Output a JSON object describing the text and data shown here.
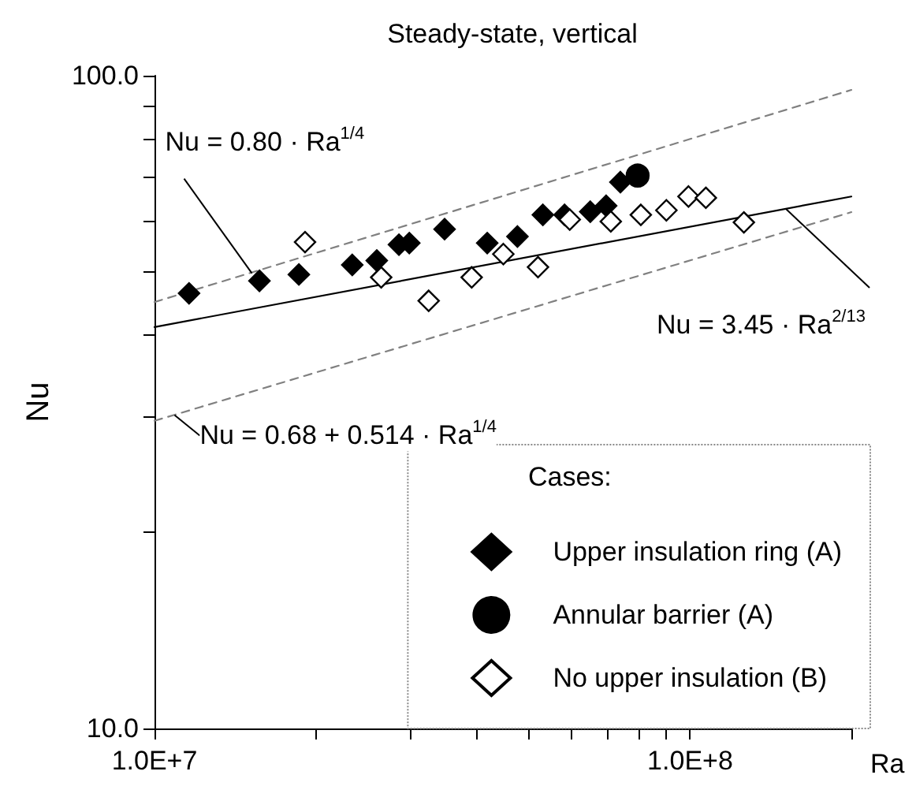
{
  "chart_data": {
    "type": "scatter",
    "title": "Steady-state, vertical",
    "xlabel": "Ra",
    "ylabel": "Nu",
    "legend_title": "Cases:",
    "log": "xy",
    "grid": false,
    "legend": "bottom right",
    "xlim": [
      10000000,
      200000000
    ],
    "xticks": [
      {
        "value": 10000000,
        "label": "1.0E+7"
      },
      {
        "value": 20000000,
        "label": null
      },
      {
        "value": 30000000,
        "label": null
      },
      {
        "value": 40000000,
        "label": null
      },
      {
        "value": 50000000,
        "label": null
      },
      {
        "value": 60000000,
        "label": null
      },
      {
        "value": 70000000,
        "label": null
      },
      {
        "value": 80000000,
        "label": null
      },
      {
        "value": 90000000,
        "label": null
      },
      {
        "value": 100000000,
        "label": "1.0E+8"
      },
      {
        "value": 200000000,
        "label": null
      }
    ],
    "ylim": [
      10,
      100
    ],
    "yticks": [
      {
        "value": 10,
        "label": "10.0"
      },
      {
        "value": 20,
        "label": null
      },
      {
        "value": 30,
        "label": null
      },
      {
        "value": 40,
        "label": null
      },
      {
        "value": 50,
        "label": null
      },
      {
        "value": 60,
        "label": null
      },
      {
        "value": 70,
        "label": null
      },
      {
        "value": 80,
        "label": null
      },
      {
        "value": 90,
        "label": null
      },
      {
        "value": 100,
        "label": "100.0"
      }
    ],
    "series": [
      {
        "name": "Upper insulation ring (A)",
        "marker": "diamond",
        "color": "#000000",
        "x": [
          11600000,
          15700000,
          18600000,
          23400000,
          26000000,
          28600000,
          29900000,
          34800000,
          41800000,
          47600000,
          53100000,
          58300000,
          65100000,
          69700000,
          74100000
        ],
        "values": [
          46.4,
          48.5,
          49.6,
          51.3,
          52.1,
          55.1,
          55.4,
          58.2,
          55.4,
          56.7,
          61.2,
          61.2,
          61.9,
          63.2,
          68.7
        ]
      },
      {
        "name": "Annular barrier (A)",
        "marker": "circle",
        "color": "#000000",
        "x": [
          79800000
        ],
        "values": [
          70.3
        ]
      },
      {
        "name": "No upper insulation (B)",
        "marker": "diamond",
        "color": "#ffffff",
        "x": [
          19100000,
          26500000,
          32500000,
          39100000,
          44800000,
          52000000,
          59600000,
          71100000,
          80900000,
          90300000,
          99300000,
          107000000,
          126000000
        ],
        "values": [
          55.6,
          49.1,
          45.2,
          49.1,
          53.3,
          50.9,
          60.2,
          59.8,
          61.2,
          62.2,
          65.3,
          65.0,
          59.6
        ]
      },
      {
        "type": "line",
        "line_style": "dashed",
        "marker": "none",
        "color": "#808080",
        "x": [
          10000000,
          200000000
        ],
        "values": [
          45.0,
          95.1
        ]
      },
      {
        "type": "line",
        "line_style": "solid",
        "marker": "none",
        "color": "#000000",
        "x": [
          10000000,
          200000000
        ],
        "values": [
          41.2,
          65.3
        ]
      },
      {
        "type": "line",
        "line_style": "dashed",
        "marker": "none",
        "color": "#808080",
        "x": [
          10000000,
          200000000
        ],
        "values": [
          29.6,
          61.8
        ]
      }
    ],
    "annotations": [
      {
        "text": "Nu = 0.80 · Ra$^{1/4}$",
        "x": 15200000,
        "y": 49.8
      },
      {
        "text": "Nu = 3.45 · Ra$^{2/13}$",
        "x": 151000000,
        "y": 62.5
      },
      {
        "text": "Nu = 0.68 + 0.514 · Ra$^{1/4}$",
        "x": 10900000,
        "y": 30.2
      }
    ]
  }
}
